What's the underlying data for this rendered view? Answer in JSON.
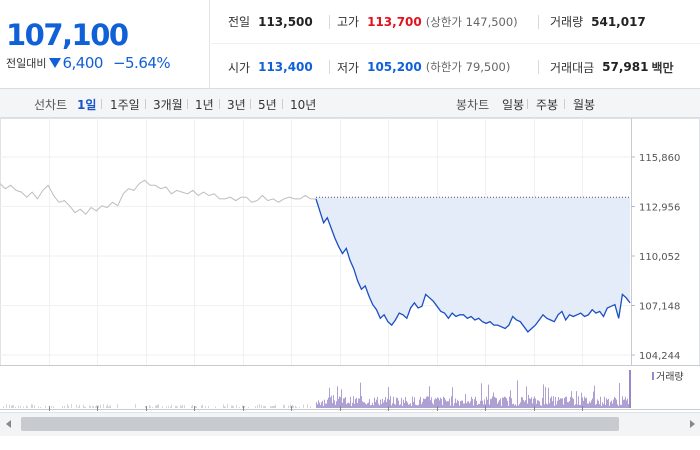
{
  "summary": {
    "current_price": "107,100",
    "change_label": "전일대비",
    "change_direction_icon": "down-triangle-icon",
    "change_amount": "6,400",
    "change_percent": "−5.64%",
    "stats": {
      "prev_close": {
        "label": "전일",
        "value": "113,500"
      },
      "high": {
        "label": "고가",
        "value": "113,700",
        "sub": "(상한가 147,500)"
      },
      "volume": {
        "label": "거래량",
        "value": "541,017"
      },
      "open": {
        "label": "시가",
        "value": "113,400"
      },
      "low": {
        "label": "저가",
        "value": "105,200",
        "sub": "(하한가 79,500)"
      },
      "turnover": {
        "label": "거래대금",
        "value": "57,981",
        "unit": "백만"
      }
    }
  },
  "tabs": {
    "line_heading": "선차트",
    "line_tabs": [
      "1일",
      "1주일",
      "3개월",
      "1년",
      "3년",
      "5년",
      "10년"
    ],
    "active_tab": "1일",
    "candle_heading": "봉차트",
    "candle_tabs": [
      "일봉",
      "주봉",
      "월봉"
    ]
  },
  "colors": {
    "price_blue": "#1060d8",
    "high_red": "#e0141e",
    "prev_day_line": "#bdbdbd",
    "today_line": "#1a4fc4",
    "area_fill": "#e3ecf8",
    "volume_bar": "#9b88c8",
    "tab_active": "#1a55c8"
  },
  "chart_data": {
    "type": "line",
    "y_ticks": [
      "115,860",
      "112,956",
      "110,052",
      "107,148",
      "104,244"
    ],
    "ylim": [
      104244,
      115860
    ],
    "reference_value": 113500,
    "legend": "거래량",
    "series": [
      {
        "values": [
          114300,
          114000,
          114200,
          113900,
          113800,
          113500,
          113800,
          113400,
          113900,
          114200,
          113600,
          113200,
          113300,
          113000,
          112600,
          112800,
          112500,
          112900,
          112700,
          113000,
          112900,
          113200,
          113000,
          113700,
          114000,
          113900,
          114300,
          114500,
          114200,
          114200,
          114000,
          114100,
          113700,
          113900,
          113800,
          113700,
          113900,
          113600,
          113800,
          113600,
          113700,
          113400,
          113400,
          113500,
          113300,
          113500,
          113500,
          113200,
          113300,
          113600,
          113300,
          113400,
          113200,
          113400,
          113500,
          113400,
          113400,
          113600,
          113400,
          113400
        ]
      },
      {
        "values": [
          113400,
          112700,
          112000,
          112300,
          111700,
          111100,
          110600,
          110200,
          110500,
          109800,
          109300,
          108600,
          108100,
          108300,
          107700,
          107200,
          106900,
          106400,
          106600,
          106200,
          106000,
          106300,
          106700,
          106600,
          106400,
          107000,
          107300,
          107000,
          107100,
          107800,
          107600,
          107400,
          107100,
          106800,
          106700,
          106400,
          106700,
          106500,
          106600,
          106600,
          106400,
          106500,
          106300,
          106400,
          106200,
          106100,
          106200,
          106000,
          106000,
          105900,
          105800,
          106000,
          106500,
          106300,
          106200,
          105900,
          105600,
          105800,
          106000,
          106300,
          106600,
          106400,
          106300,
          106200,
          106600,
          106800,
          106300,
          106600,
          106500,
          106600,
          106700,
          106500,
          106600,
          106900,
          106700,
          106800,
          106500,
          107000,
          107100,
          107200,
          106400,
          107800,
          107600,
          107300
        ]
      }
    ]
  }
}
